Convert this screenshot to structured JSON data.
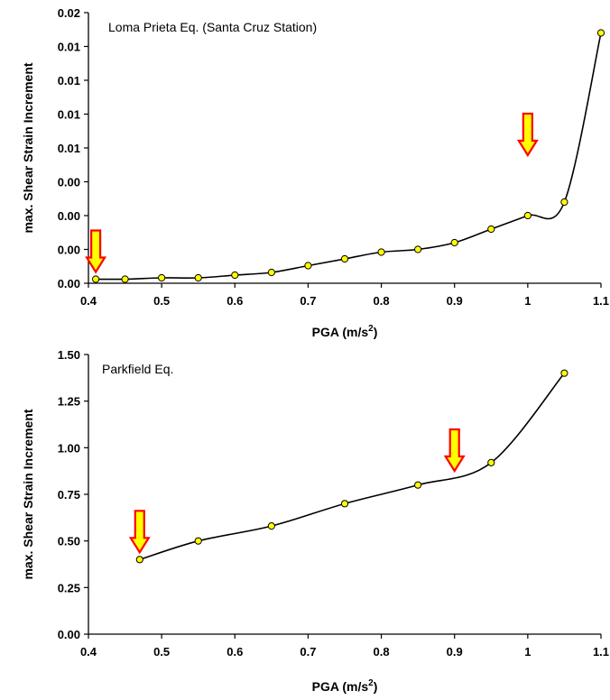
{
  "chart_data": [
    {
      "type": "scatter",
      "annotation": "Loma Prieta Eq. (Santa Cruz Station)",
      "xlabel": "PGA (m/s",
      "xlabel_sup": "2",
      "xlabel_end": ")",
      "ylabel": "max. Shear Strain Increment",
      "xlim": [
        0.4,
        1.1
      ],
      "ylim": [
        0,
        0.02
      ],
      "x_ticks": [
        "0.4",
        "0.5",
        "0.6",
        "0.7",
        "0.8",
        "0.9",
        "1",
        "1.1"
      ],
      "y_ticks": [
        "0.00",
        "0.00",
        "0.00",
        "0.00",
        "0.01",
        "0.01",
        "0.01",
        "0.01",
        "0.02"
      ],
      "grid": false,
      "series": [
        {
          "x": [
            0.41,
            0.45,
            0.5,
            0.55,
            0.6,
            0.65,
            0.7,
            0.75,
            0.8,
            0.85,
            0.9,
            0.95,
            1.0,
            1.05,
            1.1
          ],
          "y": [
            0.0003,
            0.0003,
            0.0004,
            0.0004,
            0.0006,
            0.0008,
            0.0013,
            0.0018,
            0.0023,
            0.0025,
            0.003,
            0.004,
            0.005,
            0.006,
            0.0185
          ]
        }
      ],
      "arrows_at_x": [
        0.41,
        1.0
      ],
      "marker_fill": "#ffff00",
      "arrow_fill": "#ffff00",
      "arrow_stroke": "#ff0000"
    },
    {
      "type": "scatter",
      "annotation": "Parkfield Eq.",
      "xlabel": "PGA (m/s",
      "xlabel_sup": "2",
      "xlabel_end": ")",
      "ylabel": "max. Shear Strain Increment",
      "xlim": [
        0.4,
        1.1
      ],
      "ylim": [
        0,
        1.5
      ],
      "x_ticks": [
        "0.4",
        "0.5",
        "0.6",
        "0.7",
        "0.8",
        "0.9",
        "1",
        "1.1"
      ],
      "y_ticks": [
        "0.00",
        "0.25",
        "0.50",
        "0.75",
        "1.00",
        "1.25",
        "1.50"
      ],
      "grid": false,
      "series": [
        {
          "x": [
            0.47,
            0.55,
            0.65,
            0.75,
            0.85,
            0.95,
            1.05
          ],
          "y": [
            0.4,
            0.5,
            0.58,
            0.7,
            0.8,
            0.92,
            1.4
          ]
        }
      ],
      "arrows_at_x": [
        0.47,
        0.9
      ],
      "marker_fill": "#ffff00",
      "arrow_fill": "#ffff00",
      "arrow_stroke": "#ff0000"
    }
  ]
}
